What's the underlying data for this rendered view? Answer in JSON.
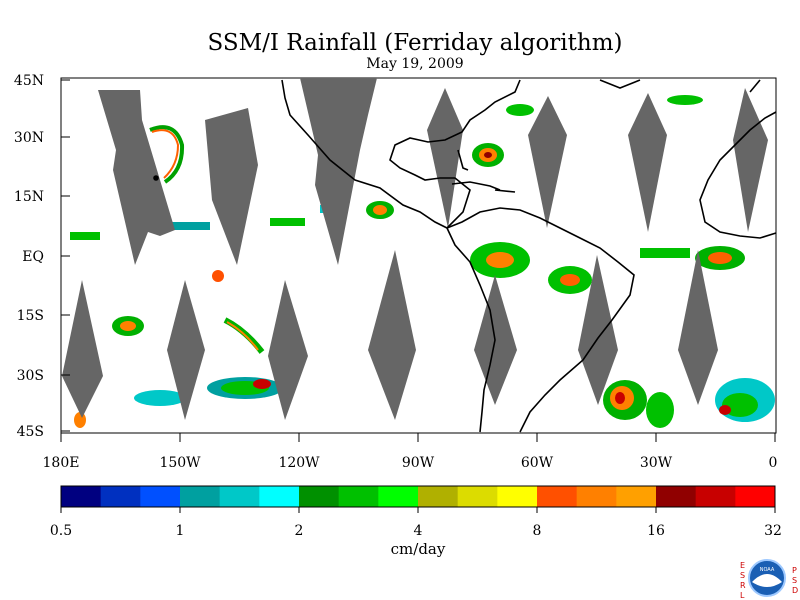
{
  "map": {
    "title": "SSM/I Rainfall (Ferriday algorithm)",
    "date": "May 19, 2009",
    "lat_labels": [
      "45N",
      "30N",
      "15N",
      "EQ",
      "15S",
      "30S",
      "45S"
    ],
    "lon_labels": [
      "180E",
      "150W",
      "120W",
      "90W",
      "60W",
      "30W",
      "0"
    ],
    "colorbar": {
      "tick_labels": [
        "0.5",
        "1",
        "2",
        "4",
        "8",
        "16",
        "32"
      ],
      "unit": "cm/day",
      "colors": [
        "#000080",
        "#0030c0",
        "#0050ff",
        "#00a0a0",
        "#00c8c8",
        "#00ffff",
        "#009000",
        "#00c000",
        "#00ff00",
        "#b0b000",
        "#dcdc00",
        "#ffff00",
        "#ff5000",
        "#ff8000",
        "#ffa000",
        "#900000",
        "#c80000",
        "#ff0000"
      ]
    },
    "swath_color": "#666666"
  },
  "logo": {
    "left_text": "ESRL",
    "right_text": "PSD",
    "center_text": "NOAA"
  }
}
